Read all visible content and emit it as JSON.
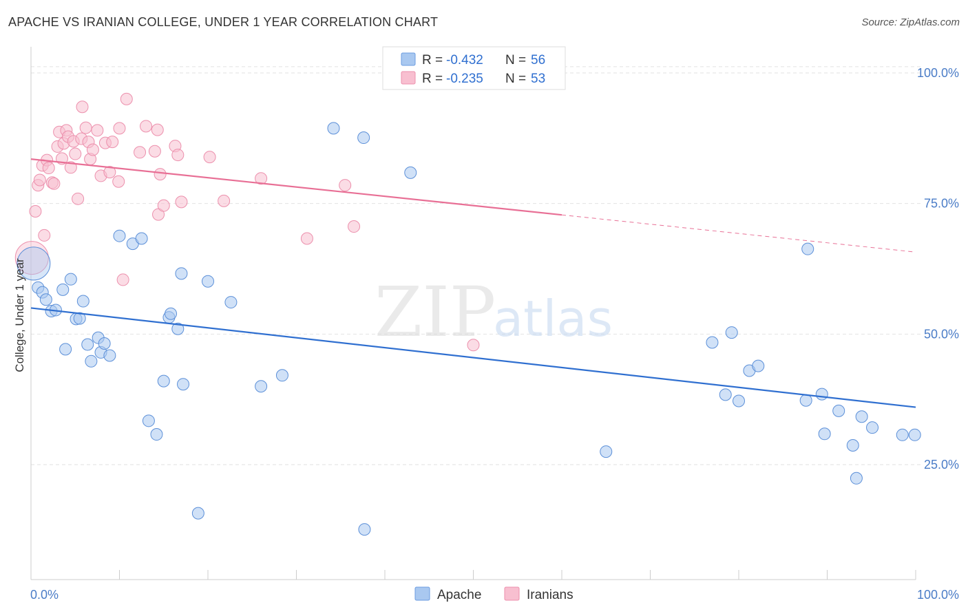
{
  "title": "APACHE VS IRANIAN COLLEGE, UNDER 1 YEAR CORRELATION CHART",
  "source": "Source: ZipAtlas.com",
  "watermark": {
    "zip": "ZIP",
    "atlas": "atlas"
  },
  "chart_data": {
    "type": "scatter",
    "ylabel": "College, Under 1 year",
    "xlim": [
      0,
      100
    ],
    "ylim": [
      3,
      105
    ],
    "x_tick_labels": [
      {
        "value": 0,
        "label": "0.0%"
      },
      {
        "value": 100,
        "label": "100.0%"
      }
    ],
    "y_tick_labels": [
      {
        "value": 25,
        "label": "25.0%"
      },
      {
        "value": 50,
        "label": "50.0%"
      },
      {
        "value": 75,
        "label": "75.0%"
      },
      {
        "value": 100,
        "label": "100.0%"
      }
    ],
    "legend": {
      "placement": "top-center",
      "rows": [
        {
          "r_label": "R = ",
          "r_value": "-0.432",
          "n_label": "N = ",
          "n_value": "56",
          "color": "#a9c8f0",
          "stroke": "#6a9be0"
        },
        {
          "r_label": "R = ",
          "r_value": "-0.235",
          "n_label": "N = ",
          "n_value": "53",
          "color": "#f8bfd0",
          "stroke": "#ec8fac"
        }
      ]
    },
    "series": [
      {
        "name": "Apache",
        "color": "#a9c8f0",
        "stroke": "#5b8fd8",
        "line_color": "#2f6fd0",
        "trend": {
          "x0": 0,
          "y0": 55.0,
          "x1": 100,
          "y1": 36.0,
          "solid_until": 100
        },
        "points": [
          {
            "x": 0.3,
            "y": 63.5,
            "big": true
          },
          {
            "x": 0.8,
            "y": 58.9
          },
          {
            "x": 1.3,
            "y": 58.0
          },
          {
            "x": 1.7,
            "y": 56.6
          },
          {
            "x": 2.3,
            "y": 54.4
          },
          {
            "x": 2.8,
            "y": 54.6
          },
          {
            "x": 3.6,
            "y": 58.5
          },
          {
            "x": 3.9,
            "y": 47.1
          },
          {
            "x": 4.5,
            "y": 60.5
          },
          {
            "x": 5.1,
            "y": 52.9
          },
          {
            "x": 5.5,
            "y": 53.0
          },
          {
            "x": 5.9,
            "y": 56.3
          },
          {
            "x": 6.4,
            "y": 48.0
          },
          {
            "x": 6.8,
            "y": 44.8
          },
          {
            "x": 7.6,
            "y": 49.3
          },
          {
            "x": 7.9,
            "y": 46.5
          },
          {
            "x": 8.3,
            "y": 48.2
          },
          {
            "x": 8.9,
            "y": 45.9
          },
          {
            "x": 10.0,
            "y": 68.8
          },
          {
            "x": 11.5,
            "y": 67.3
          },
          {
            "x": 12.5,
            "y": 68.3
          },
          {
            "x": 13.3,
            "y": 33.4
          },
          {
            "x": 14.2,
            "y": 30.8
          },
          {
            "x": 15.0,
            "y": 41.0
          },
          {
            "x": 15.6,
            "y": 53.2
          },
          {
            "x": 15.8,
            "y": 53.9
          },
          {
            "x": 16.6,
            "y": 51.0
          },
          {
            "x": 17.0,
            "y": 61.6
          },
          {
            "x": 17.2,
            "y": 40.4
          },
          {
            "x": 18.9,
            "y": 15.7
          },
          {
            "x": 20.0,
            "y": 60.1
          },
          {
            "x": 22.6,
            "y": 56.1
          },
          {
            "x": 26.0,
            "y": 40.0
          },
          {
            "x": 28.4,
            "y": 42.1
          },
          {
            "x": 34.2,
            "y": 89.4
          },
          {
            "x": 37.6,
            "y": 87.6
          },
          {
            "x": 37.7,
            "y": 12.6
          },
          {
            "x": 42.9,
            "y": 80.9
          },
          {
            "x": 65.0,
            "y": 27.5
          },
          {
            "x": 77.0,
            "y": 48.4
          },
          {
            "x": 78.5,
            "y": 38.4
          },
          {
            "x": 79.2,
            "y": 50.3
          },
          {
            "x": 80.0,
            "y": 37.2
          },
          {
            "x": 81.2,
            "y": 43.0
          },
          {
            "x": 82.2,
            "y": 43.9
          },
          {
            "x": 87.8,
            "y": 66.3
          },
          {
            "x": 87.6,
            "y": 37.3
          },
          {
            "x": 89.4,
            "y": 38.5
          },
          {
            "x": 89.7,
            "y": 30.9
          },
          {
            "x": 91.3,
            "y": 35.3
          },
          {
            "x": 92.9,
            "y": 28.7
          },
          {
            "x": 93.3,
            "y": 22.4
          },
          {
            "x": 93.9,
            "y": 34.2
          },
          {
            "x": 95.1,
            "y": 32.1
          },
          {
            "x": 98.5,
            "y": 30.7
          },
          {
            "x": 99.9,
            "y": 30.7
          }
        ]
      },
      {
        "name": "Iranians",
        "color": "#f8bfd0",
        "stroke": "#ec8fac",
        "line_color": "#e86f95",
        "trend": {
          "x0": 0,
          "y0": 83.5,
          "x1": 100,
          "y1": 65.7,
          "solid_until": 60
        },
        "points": [
          {
            "x": 0.1,
            "y": 64.6,
            "big": true
          },
          {
            "x": 0.5,
            "y": 73.5
          },
          {
            "x": 0.8,
            "y": 78.5
          },
          {
            "x": 1.0,
            "y": 79.5
          },
          {
            "x": 1.3,
            "y": 82.3
          },
          {
            "x": 1.5,
            "y": 68.9
          },
          {
            "x": 1.8,
            "y": 83.3
          },
          {
            "x": 2.0,
            "y": 81.8
          },
          {
            "x": 2.4,
            "y": 79.0
          },
          {
            "x": 2.6,
            "y": 78.8
          },
          {
            "x": 3.0,
            "y": 85.9
          },
          {
            "x": 3.2,
            "y": 88.7
          },
          {
            "x": 3.5,
            "y": 83.6
          },
          {
            "x": 3.7,
            "y": 86.5
          },
          {
            "x": 4.0,
            "y": 89.0
          },
          {
            "x": 4.2,
            "y": 87.8
          },
          {
            "x": 4.5,
            "y": 81.9
          },
          {
            "x": 4.8,
            "y": 86.9
          },
          {
            "x": 5.0,
            "y": 84.5
          },
          {
            "x": 5.3,
            "y": 75.9
          },
          {
            "x": 5.7,
            "y": 87.4
          },
          {
            "x": 5.8,
            "y": 93.5
          },
          {
            "x": 6.2,
            "y": 89.5
          },
          {
            "x": 6.5,
            "y": 86.8
          },
          {
            "x": 6.7,
            "y": 83.5
          },
          {
            "x": 7.0,
            "y": 85.3
          },
          {
            "x": 7.5,
            "y": 89.0
          },
          {
            "x": 7.9,
            "y": 80.3
          },
          {
            "x": 8.4,
            "y": 86.6
          },
          {
            "x": 8.9,
            "y": 81.0
          },
          {
            "x": 9.2,
            "y": 86.8
          },
          {
            "x": 9.9,
            "y": 79.2
          },
          {
            "x": 10.0,
            "y": 89.4
          },
          {
            "x": 10.4,
            "y": 60.4
          },
          {
            "x": 10.8,
            "y": 95.0
          },
          {
            "x": 12.3,
            "y": 84.8
          },
          {
            "x": 13.0,
            "y": 89.8
          },
          {
            "x": 14.0,
            "y": 85.0
          },
          {
            "x": 14.3,
            "y": 89.1
          },
          {
            "x": 14.4,
            "y": 72.9
          },
          {
            "x": 14.6,
            "y": 80.6
          },
          {
            "x": 15.0,
            "y": 74.6
          },
          {
            "x": 16.3,
            "y": 86.0
          },
          {
            "x": 16.6,
            "y": 84.3
          },
          {
            "x": 17.0,
            "y": 75.3
          },
          {
            "x": 20.2,
            "y": 83.9
          },
          {
            "x": 21.8,
            "y": 75.5
          },
          {
            "x": 26.0,
            "y": 79.8
          },
          {
            "x": 31.2,
            "y": 68.3
          },
          {
            "x": 35.5,
            "y": 78.5
          },
          {
            "x": 36.5,
            "y": 70.6
          },
          {
            "x": 50.0,
            "y": 47.9
          },
          {
            "x": 52.4,
            "y": 100.0
          }
        ]
      }
    ]
  },
  "bottom_legend": [
    {
      "label": "Apache",
      "color": "#a9c8f0",
      "stroke": "#6a9be0"
    },
    {
      "label": "Iranians",
      "color": "#f8bfd0",
      "stroke": "#ec8fac"
    }
  ]
}
